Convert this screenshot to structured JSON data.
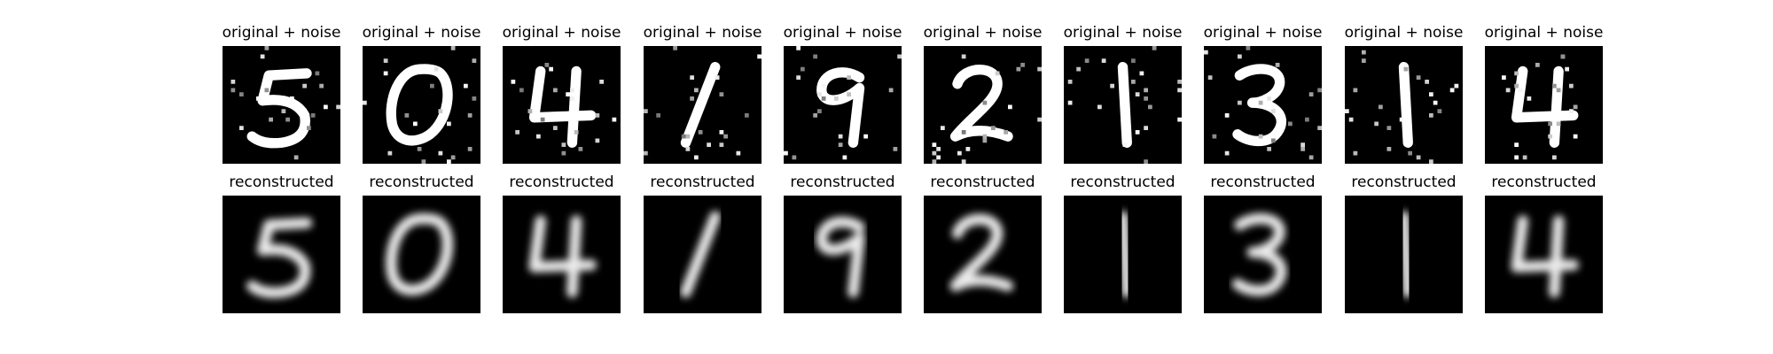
{
  "chart_data": {
    "type": "image_grid",
    "rows": 2,
    "columns": 10,
    "row_titles": [
      "original + noise",
      "reconstructed"
    ],
    "digits": [
      "5",
      "0",
      "4",
      "1",
      "9",
      "2",
      "1",
      "3",
      "1",
      "4"
    ],
    "colormap": "gray",
    "background_color": "#000000",
    "stroke_color": "#ffffff",
    "panels": [
      {
        "row": 0,
        "col": 0,
        "title": "original + noise",
        "noisy": true
      },
      {
        "row": 0,
        "col": 1,
        "title": "original + noise",
        "noisy": true
      },
      {
        "row": 0,
        "col": 2,
        "title": "original + noise",
        "noisy": true
      },
      {
        "row": 0,
        "col": 3,
        "title": "original + noise",
        "noisy": true
      },
      {
        "row": 0,
        "col": 4,
        "title": "original + noise",
        "noisy": true
      },
      {
        "row": 0,
        "col": 5,
        "title": "original + noise",
        "noisy": true
      },
      {
        "row": 0,
        "col": 6,
        "title": "original + noise",
        "noisy": true
      },
      {
        "row": 0,
        "col": 7,
        "title": "original + noise",
        "noisy": true
      },
      {
        "row": 0,
        "col": 8,
        "title": "original + noise",
        "noisy": true
      },
      {
        "row": 0,
        "col": 9,
        "title": "original + noise",
        "noisy": true
      },
      {
        "row": 1,
        "col": 0,
        "title": "reconstructed",
        "noisy": false
      },
      {
        "row": 1,
        "col": 1,
        "title": "reconstructed",
        "noisy": false
      },
      {
        "row": 1,
        "col": 2,
        "title": "reconstructed",
        "noisy": false
      },
      {
        "row": 1,
        "col": 3,
        "title": "reconstructed",
        "noisy": false
      },
      {
        "row": 1,
        "col": 4,
        "title": "reconstructed",
        "noisy": false
      },
      {
        "row": 1,
        "col": 5,
        "title": "reconstructed",
        "noisy": false
      },
      {
        "row": 1,
        "col": 6,
        "title": "reconstructed",
        "noisy": false
      },
      {
        "row": 1,
        "col": 7,
        "title": "reconstructed",
        "noisy": false
      },
      {
        "row": 1,
        "col": 8,
        "title": "reconstructed",
        "noisy": false
      },
      {
        "row": 1,
        "col": 9,
        "title": "reconstructed",
        "noisy": false
      }
    ]
  }
}
